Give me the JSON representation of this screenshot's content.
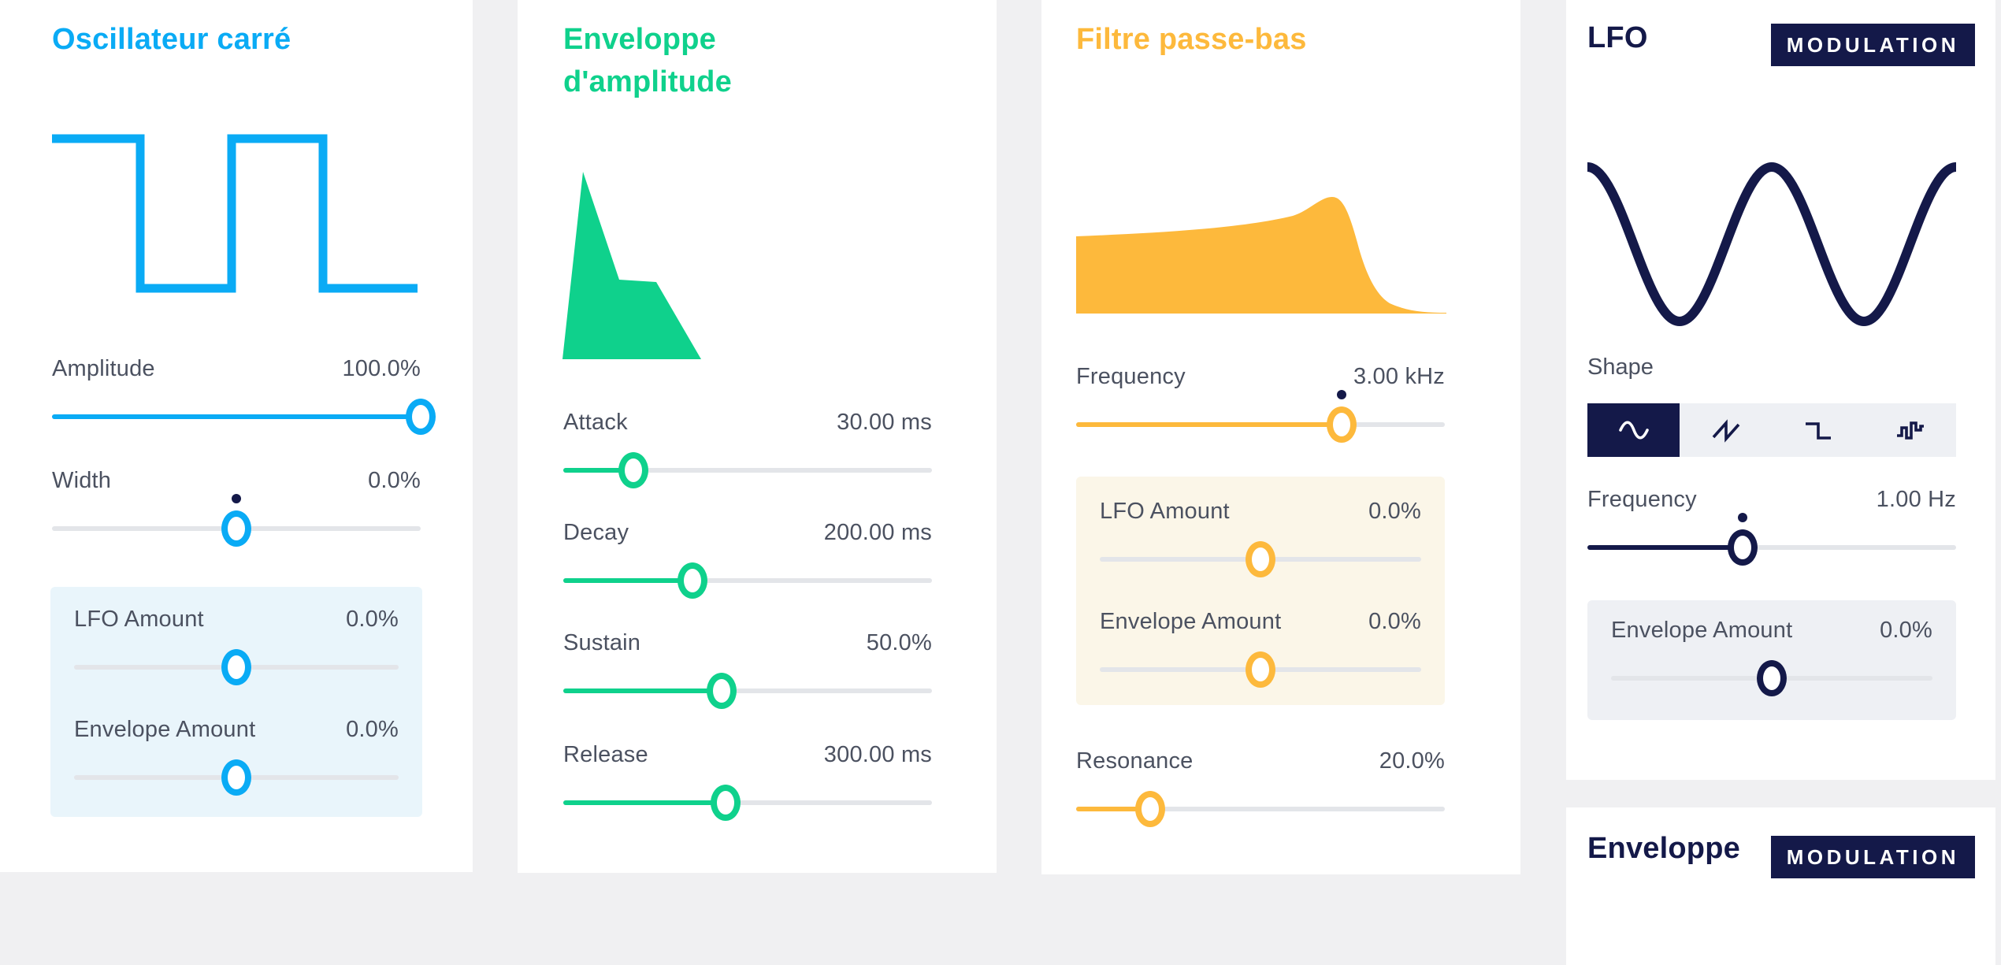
{
  "page": {
    "background": "#f0f0f2",
    "card_background": "#ffffff",
    "label_color": "#4b5160",
    "track_color": "#e3e5e9",
    "modulation_dot_color": "#141949"
  },
  "panels": [
    {
      "id": "oscillator",
      "title": "Oscillateur carré",
      "accent": "#0aabf5",
      "waveform": "square",
      "inset_bg": "#e9f5fb",
      "sliders": [
        {
          "label": "Amplitude",
          "value": "100.0%",
          "frac": 1,
          "fill_from": "left",
          "dot": false
        },
        {
          "label": "Width",
          "value": "0.0%",
          "frac": 0.5,
          "fill_from": "center",
          "dot": true
        },
        {
          "label": "LFO Amount",
          "value": "0.0%",
          "frac": 0.5,
          "fill_from": "center",
          "dot": false
        },
        {
          "label": "Envelope Amount",
          "value": "0.0%",
          "frac": 0.5,
          "fill_from": "center",
          "dot": false
        }
      ]
    },
    {
      "id": "amp-envelope",
      "title": "Enveloppe d'amplitude",
      "accent": "#0fd18c",
      "waveform": "adsr",
      "sliders": [
        {
          "label": "Attack",
          "value": "30.00 ms",
          "frac": 0.19,
          "fill_from": "left",
          "dot": false
        },
        {
          "label": "Decay",
          "value": "200.00 ms",
          "frac": 0.35,
          "fill_from": "left",
          "dot": false
        },
        {
          "label": "Sustain",
          "value": "50.0%",
          "frac": 0.43,
          "fill_from": "left",
          "dot": false
        },
        {
          "label": "Release",
          "value": "300.00 ms",
          "frac": 0.44,
          "fill_from": "left",
          "dot": false
        }
      ]
    },
    {
      "id": "lowpass-filter",
      "title": "Filtre passe-bas",
      "accent": "#fdb93c",
      "waveform": "lowpass",
      "inset_bg": "#fbf6e8",
      "sliders": [
        {
          "label": "Frequency",
          "value": "3.00 kHz",
          "frac": 0.72,
          "fill_from": "left",
          "dot": true
        },
        {
          "label": "LFO Amount",
          "value": "0.0%",
          "frac": 0.5,
          "fill_from": "center",
          "dot": false
        },
        {
          "label": "Envelope Amount",
          "value": "0.0%",
          "frac": 0.5,
          "fill_from": "center",
          "dot": false
        },
        {
          "label": "Resonance",
          "value": "20.0%",
          "frac": 0.2,
          "fill_from": "left",
          "dot": false
        }
      ]
    },
    {
      "id": "lfo",
      "title": "LFO",
      "badge": "MODULATION",
      "accent": "#141949",
      "waveform": "sine",
      "inset_bg": "#eef0f4",
      "shape": {
        "label": "Shape",
        "selected": 0,
        "options": [
          "sine",
          "sawtooth",
          "square",
          "random"
        ]
      },
      "sliders": [
        {
          "label": "Frequency",
          "value": "1.00 Hz",
          "frac": 0.42,
          "fill_from": "left",
          "dot": true
        },
        {
          "label": "Envelope Amount",
          "value": "0.0%",
          "frac": 0.5,
          "fill_from": "center",
          "dot": false
        }
      ]
    },
    {
      "id": "mod-envelope",
      "title": "Enveloppe",
      "badge": "MODULATION",
      "accent": "#141949"
    }
  ]
}
